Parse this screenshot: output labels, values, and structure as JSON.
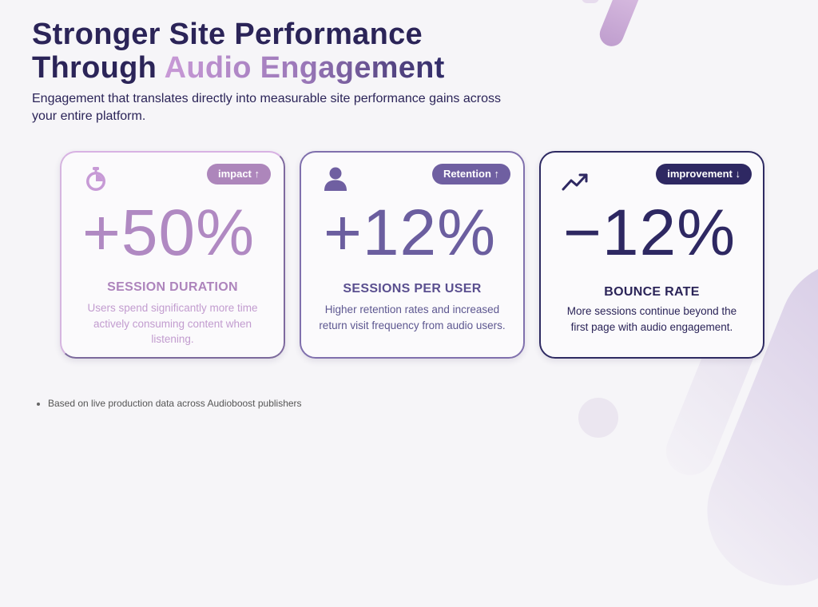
{
  "title": {
    "line1": "Stronger Site Performance",
    "line2_plain": "Through ",
    "line2_accent": "Audio Engagement"
  },
  "subtitle": "Engagement that translates directly into measurable site performance gains across your entire platform.",
  "cards": [
    {
      "icon": "stopwatch-icon",
      "badge": "impact ↑",
      "value": "+50%",
      "label": "SESSION DURATION",
      "description": "Users spend significantly more time actively consuming content when listening."
    },
    {
      "icon": "user-icon",
      "badge": "Retention ↑",
      "value": "+12%",
      "label": "SESSIONS PER USER",
      "description": "Higher retention rates and increased return visit frequency from audio users."
    },
    {
      "icon": "trending-up-icon",
      "badge": "improvement ↓",
      "value": "−12%",
      "label": "BOUNCE RATE",
      "description": "More sessions continue beyond the first page with audio engagement."
    }
  ],
  "footnote": "Based on live production data across Audioboost publishers",
  "colors": {
    "primary": "#2b2458",
    "accent_light": "#c99ad7",
    "accent_mid": "#6f5fa1",
    "background": "#f6f5f8"
  }
}
